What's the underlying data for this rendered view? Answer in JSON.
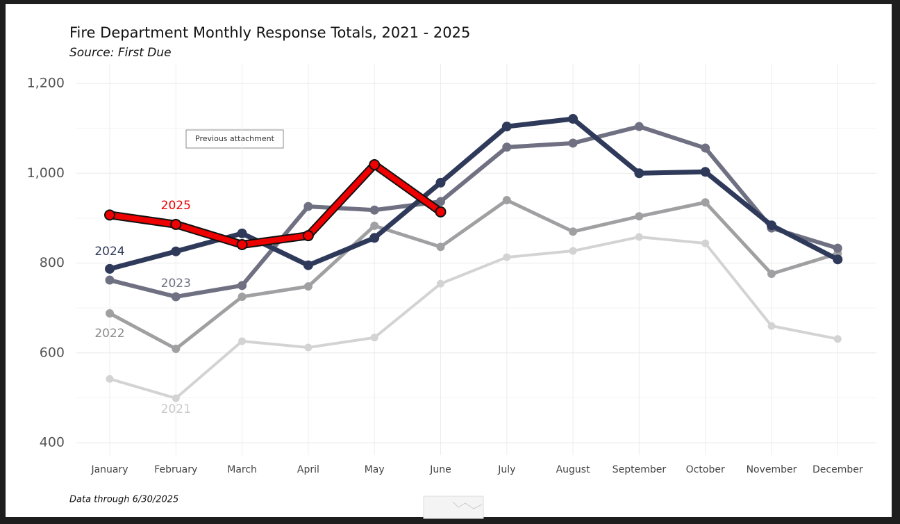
{
  "chart_data": {
    "type": "line",
    "title": "Fire Department Monthly Response Totals, 2021 - 2025",
    "subtitle": "Source: First Due",
    "footnote": "Data through 6/30/2025",
    "button": "Previous attachment",
    "categories": [
      "January",
      "February",
      "March",
      "April",
      "May",
      "June",
      "July",
      "August",
      "September",
      "October",
      "November",
      "December"
    ],
    "ylim": [
      400,
      1200
    ],
    "yticks": [
      {
        "value": 400,
        "label": "400"
      },
      {
        "value": 600,
        "label": "600"
      },
      {
        "value": 800,
        "label": "800"
      },
      {
        "value": 1000,
        "label": "1,000"
      },
      {
        "value": 1200,
        "label": "1,200"
      }
    ],
    "minor_yticks": [
      500,
      700,
      900,
      1100
    ],
    "grid": true,
    "series": [
      {
        "name": "2021",
        "color": "#d3d3d3",
        "values": [
          542,
          499,
          626,
          612,
          634,
          754,
          813,
          827,
          858,
          844,
          660,
          631
        ]
      },
      {
        "name": "2022",
        "color": "#a0a0a2",
        "values": [
          688,
          609,
          725,
          748,
          883,
          836,
          940,
          870,
          904,
          935,
          776,
          821
        ]
      },
      {
        "name": "2023",
        "color": "#6f7182",
        "values": [
          762,
          725,
          750,
          926,
          918,
          937,
          1058,
          1067,
          1104,
          1056,
          878,
          833
        ]
      },
      {
        "name": "2024",
        "color": "#2f3a5a",
        "values": [
          787,
          826,
          866,
          795,
          856,
          979,
          1104,
          1121,
          1000,
          1003,
          884,
          808
        ]
      },
      {
        "name": "2025",
        "color": "#ee0000",
        "values": [
          907,
          886,
          841,
          861,
          1019,
          914,
          null,
          null,
          null,
          null,
          null,
          null
        ]
      }
    ]
  }
}
